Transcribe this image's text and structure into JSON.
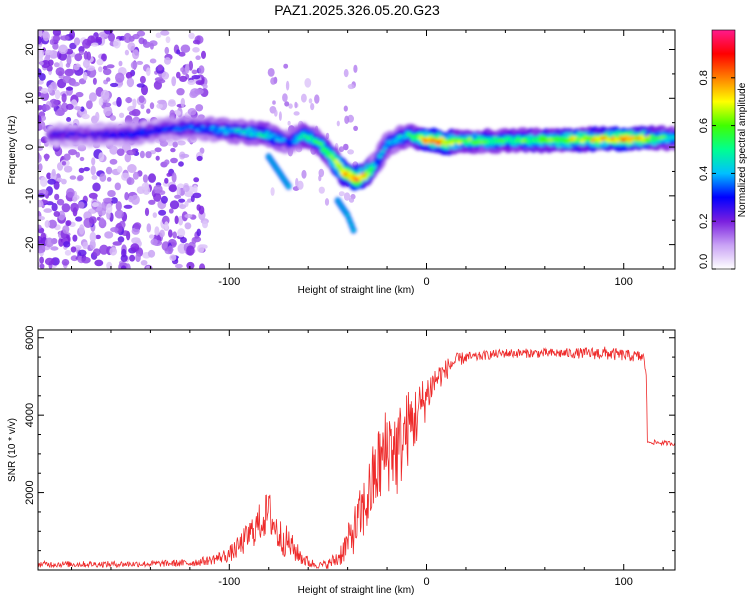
{
  "page_title": "PAZ1.2025.326.05.20.G23",
  "chart_data": [
    {
      "type": "heatmap",
      "title": "PAZ1.2025.326.05.20.G23",
      "xlabel": "Height of straight line (km)",
      "ylabel": "Frequency (Hz)",
      "xlim": [
        -197,
        126
      ],
      "ylim": [
        -25,
        24
      ],
      "xticks": [
        -100,
        0,
        100
      ],
      "yticks": [
        -20,
        -10,
        0,
        10,
        20
      ],
      "colorbar": {
        "label": "Normalized spectral amplitude",
        "range": [
          0,
          1
        ],
        "ticks": [
          "0.0",
          "0.2",
          "0.4",
          "0.6",
          "0.8"
        ],
        "colors": [
          "#ffffff",
          "#c9a2f5",
          "#7a1fdf",
          "#0000ff",
          "#00c0ff",
          "#00ff90",
          "#40ff00",
          "#ffff00",
          "#ff8000",
          "#ff0000",
          "#ff1a8c"
        ]
      },
      "ridge": {
        "x": [
          -190,
          -170,
          -150,
          -135,
          -120,
          -105,
          -90,
          -80,
          -70,
          -62,
          -55,
          -48,
          -42,
          -36,
          -30,
          -25,
          -20,
          -15,
          -10,
          -5,
          0,
          10,
          20,
          40,
          60,
          80,
          100,
          126
        ],
        "y": [
          2.5,
          2.5,
          2.7,
          3.5,
          4,
          3.5,
          3,
          2.5,
          1,
          2.5,
          1,
          -2,
          -5.5,
          -6.5,
          -5.5,
          -3,
          0.5,
          1.5,
          2.5,
          2,
          1.5,
          1,
          1.2,
          1.3,
          1.4,
          1.6,
          1.7,
          1.8
        ],
        "amplitude": [
          0.25,
          0.25,
          0.3,
          0.3,
          0.35,
          0.4,
          0.45,
          0.5,
          0.35,
          0.55,
          0.55,
          0.6,
          0.8,
          0.9,
          0.75,
          0.4,
          0.4,
          0.45,
          0.5,
          0.6,
          0.8,
          0.8,
          0.6,
          0.55,
          0.65,
          0.7,
          0.85,
          0.5
        ]
      },
      "branches": [
        {
          "x": [
            -80,
            -75,
            -70
          ],
          "y": [
            -2,
            -5,
            -8
          ]
        },
        {
          "x": [
            -45,
            -40,
            -37
          ],
          "y": [
            -11,
            -14,
            -17
          ]
        }
      ]
    },
    {
      "type": "line",
      "xlabel": "Height of straight line (km)",
      "ylabel": "SNR (10 * v/v)",
      "xlim": [
        -197,
        126
      ],
      "ylim": [
        0,
        6200
      ],
      "xticks": [
        -100,
        0,
        100
      ],
      "yticks": [
        2000,
        4000,
        6000
      ],
      "series": [
        {
          "name": "SNR",
          "color": "#ee2a2a",
          "x": [
            -197,
            -180,
            -160,
            -140,
            -120,
            -110,
            -100,
            -95,
            -90,
            -85,
            -80,
            -75,
            -70,
            -65,
            -60,
            -55,
            -50,
            -45,
            -40,
            -35,
            -30,
            -27,
            -24,
            -21,
            -18,
            -15,
            -12,
            -9,
            -6,
            -3,
            0,
            3,
            6,
            9,
            12,
            15,
            20,
            25,
            30,
            40,
            50,
            60,
            70,
            80,
            90,
            100,
            110,
            111.5,
            112,
            115,
            120,
            126
          ],
          "values": [
            150,
            150,
            150,
            160,
            180,
            250,
            400,
            600,
            900,
            1200,
            1500,
            900,
            700,
            400,
            200,
            120,
            150,
            300,
            700,
            1200,
            1800,
            2300,
            2700,
            3000,
            3300,
            3000,
            3400,
            3700,
            3900,
            4200,
            4500,
            4800,
            5000,
            5100,
            5300,
            5400,
            5500,
            5500,
            5550,
            5600,
            5600,
            5600,
            5600,
            5600,
            5600,
            5550,
            5500,
            5000,
            3300,
            3300,
            3280,
            3270
          ],
          "noise": [
            80,
            80,
            80,
            80,
            100,
            120,
            200,
            300,
            400,
            500,
            600,
            500,
            400,
            250,
            150,
            80,
            120,
            250,
            450,
            700,
            900,
            1000,
            1100,
            1200,
            1200,
            1200,
            1100,
            1000,
            900,
            700,
            600,
            450,
            350,
            300,
            250,
            200,
            150,
            120,
            120,
            120,
            120,
            120,
            130,
            140,
            180,
            150,
            150,
            0,
            0,
            60,
            60,
            60
          ]
        }
      ]
    }
  ]
}
